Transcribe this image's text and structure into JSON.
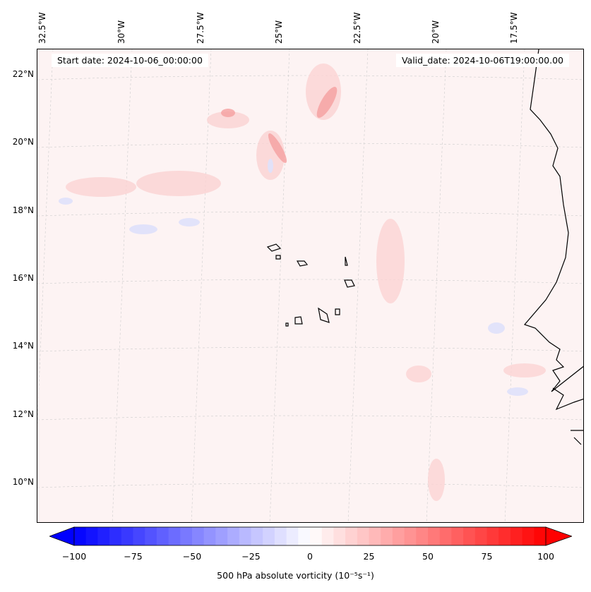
{
  "map": {
    "start_date": "Start date: 2024-10-06_00:00:00",
    "valid_date": "Valid_date: 2024-10-06T19:00:00.00",
    "lon_labels": [
      "32.5°W",
      "30°W",
      "27.5°W",
      "25°W",
      "22.5°W",
      "20°W",
      "17.5°W"
    ],
    "lat_labels": [
      "22°N",
      "20°N",
      "18°N",
      "16°N",
      "14°N",
      "12°N",
      "10°N"
    ]
  },
  "colorbar": {
    "label": "500 hPa absolute vorticity (10⁻⁵s⁻¹)",
    "min": -100,
    "max": 100,
    "step": 5,
    "ticks": [
      "−100",
      "−75",
      "−50",
      "−25",
      "0",
      "25",
      "50",
      "75",
      "100"
    ],
    "colormap": "bwr"
  }
}
